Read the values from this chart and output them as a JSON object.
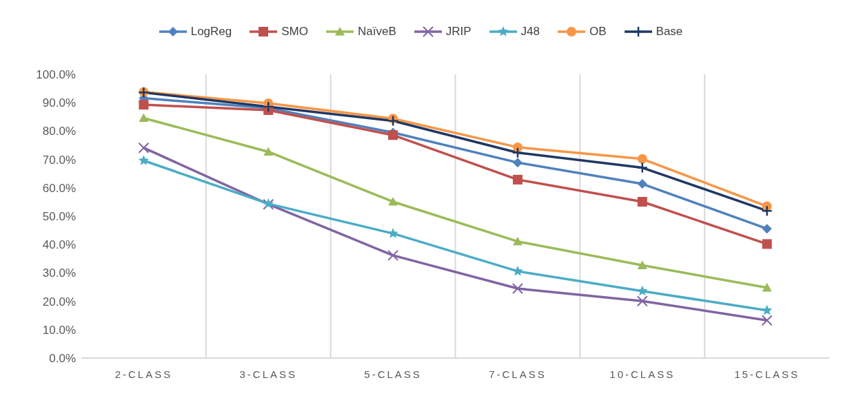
{
  "chart_data": {
    "type": "line",
    "categories": [
      "2-CLASS",
      "3-CLASS",
      "5-CLASS",
      "7-CLASS",
      "10-CLASS",
      "15-CLASS"
    ],
    "series": [
      {
        "name": "LogReg",
        "color": "#4f81bd",
        "marker": "diamond",
        "values": [
          91.6,
          88.1,
          79.5,
          68.9,
          61.4,
          45.6
        ]
      },
      {
        "name": "SMO",
        "color": "#c0504d",
        "marker": "square",
        "values": [
          89.3,
          87.4,
          78.6,
          62.9,
          55.1,
          40.2
        ]
      },
      {
        "name": "NaïveB",
        "color": "#9bbb59",
        "marker": "triangle",
        "values": [
          84.6,
          72.7,
          55.1,
          41.1,
          32.7,
          24.8
        ]
      },
      {
        "name": "JRIP",
        "color": "#8064a2",
        "marker": "cross",
        "values": [
          74.1,
          54.2,
          36.2,
          24.5,
          20.1,
          13.3
        ]
      },
      {
        "name": "J48",
        "color": "#4bacc6",
        "marker": "star",
        "values": [
          69.6,
          54.4,
          43.9,
          30.6,
          23.6,
          16.8
        ]
      },
      {
        "name": "OB",
        "color": "#f79646",
        "marker": "circle",
        "values": [
          93.8,
          89.8,
          84.4,
          74.3,
          70.2,
          53.5
        ]
      },
      {
        "name": "Base",
        "color": "#1f3864",
        "marker": "plus",
        "values": [
          93.6,
          88.6,
          83.6,
          72.4,
          67.1,
          51.9
        ]
      }
    ],
    "ylim": [
      0,
      100
    ],
    "yticks": [
      {
        "value": 0,
        "label": "0.0%"
      },
      {
        "value": 10,
        "label": "10.0%"
      },
      {
        "value": 20,
        "label": "20.0%"
      },
      {
        "value": 30,
        "label": "30.0%"
      },
      {
        "value": 40,
        "label": "40.0%"
      },
      {
        "value": 50,
        "label": "50.0%"
      },
      {
        "value": 60,
        "label": "60.0%"
      },
      {
        "value": 70,
        "label": "70.0%"
      },
      {
        "value": 80,
        "label": "80.0%"
      },
      {
        "value": 90,
        "label": "90.0%"
      },
      {
        "value": 100,
        "label": "100.0%"
      }
    ],
    "grid": "x",
    "legend": "top"
  }
}
